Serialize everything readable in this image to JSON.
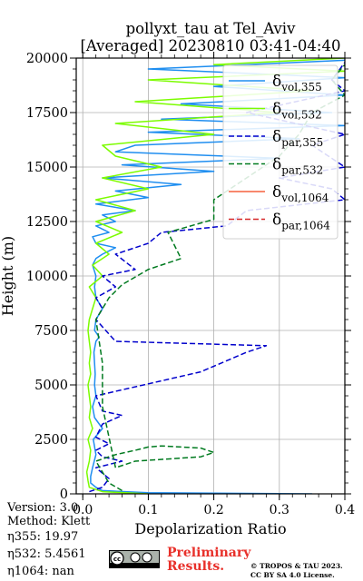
{
  "figure": {
    "title_line1": "pollyxt_tau at Tel_Aviv",
    "title_line2": "[Averaged] 20230810 03:41-04:40"
  },
  "meta": {
    "version": "Version: 3.0",
    "method": "Method: Klett",
    "eta355": "η355:  19.97",
    "eta532": "η532: 5.4561",
    "eta1064": "η1064:    nan"
  },
  "footer": {
    "preliminary_line1": "Preliminary",
    "preliminary_line2": "Results.",
    "copyright_line1": "© TROPOS & TAU 2023.",
    "copyright_line2": "CC BY SA 4.0 License.",
    "cc_badge_text": "cc"
  },
  "chart_data": {
    "type": "line",
    "title": "pollyxt_tau at Tel_Aviv [Averaged] 20230810 03:41-04:40",
    "xlabel": "Depolarization Ratio",
    "ylabel": "Height (m)",
    "xlim": [
      -0.01,
      0.4
    ],
    "ylim": [
      0,
      20000
    ],
    "xticks": [
      "0.0",
      "0.1",
      "0.2",
      "0.3",
      "0.4"
    ],
    "yticks": [
      "0",
      "2500",
      "5000",
      "7500",
      "10000",
      "12500",
      "15000",
      "17500",
      "20000"
    ],
    "grid": true,
    "legend_position": "top-right",
    "series": [
      {
        "name": "δvol,355",
        "color": "#1f8ef0",
        "dash": "solid",
        "x": [
          0.35,
          0.1,
          0.03,
          0.02,
          0.012,
          0.012,
          0.015,
          0.02,
          0.016,
          0.03,
          0.018,
          0.015,
          0.02,
          0.018,
          0.019,
          0.018,
          0.017,
          0.02,
          0.025,
          0.018,
          0.02,
          0.03,
          0.02,
          0.018,
          0.02,
          0.015,
          0.02,
          0.03,
          0.05,
          0.02,
          0.015,
          0.04,
          0.02,
          0.05,
          0.03,
          0.08,
          0.02,
          0.1,
          0.05,
          0.15,
          0.03,
          0.2,
          0.06,
          0.3,
          0.05,
          0.08,
          0.33,
          0.1,
          0.4,
          0.12,
          0.38,
          0.15,
          0.4,
          0.2,
          0.4,
          0.1,
          0.4
        ],
        "y": [
          0,
          50,
          150,
          300,
          500,
          800,
          1200,
          1800,
          2500,
          3000,
          3500,
          4000,
          4500,
          5000,
          5500,
          6000,
          6500,
          7000,
          7200,
          7500,
          8000,
          8500,
          9000,
          9500,
          10000,
          10500,
          10800,
          11000,
          11300,
          11500,
          11800,
          12000,
          12300,
          12500,
          12800,
          13000,
          13300,
          13600,
          13900,
          14200,
          14500,
          14800,
          15100,
          15400,
          15700,
          16000,
          16300,
          16600,
          16900,
          17200,
          17500,
          17900,
          18300,
          18700,
          19100,
          19500,
          19900
        ]
      },
      {
        "name": "δvol,532",
        "color": "#7cfc00",
        "dash": "solid",
        "x": [
          0.1,
          0.03,
          0.01,
          0.008,
          0.006,
          0.01,
          0.012,
          0.008,
          0.015,
          0.01,
          0.012,
          0.01,
          0.008,
          0.012,
          0.01,
          0.012,
          0.01,
          0.008,
          0.01,
          0.015,
          0.02,
          0.01,
          0.03,
          0.015,
          0.04,
          0.02,
          0.06,
          0.02,
          0.08,
          0.02,
          0.1,
          0.03,
          0.12,
          0.05,
          0.03,
          0.2,
          0.05,
          0.3,
          0.08,
          0.35,
          0.1,
          0.4,
          0.2,
          0.4
        ],
        "y": [
          0,
          100,
          300,
          600,
          1000,
          1500,
          2000,
          2500,
          3000,
          3500,
          4000,
          4500,
          5000,
          5500,
          6000,
          6500,
          7000,
          7500,
          8000,
          8500,
          9000,
          9500,
          10000,
          10500,
          11000,
          11500,
          12000,
          12500,
          13000,
          13500,
          14000,
          14500,
          15000,
          15500,
          16000,
          16500,
          17000,
          17500,
          18000,
          18500,
          19000,
          19400,
          19700,
          20000
        ]
      },
      {
        "name": "δpar,355",
        "color": "#0000cc",
        "dash": "6,3",
        "x": [
          0.01,
          0.03,
          0.04,
          0.02,
          0.06,
          0.03,
          0.02,
          0.04,
          0.02,
          0.03,
          0.06,
          0.03,
          0.02,
          0.18,
          0.25,
          0.28,
          0.05,
          0.02,
          0.03,
          0.02,
          0.05,
          0.03,
          0.08,
          0.05,
          0.1,
          0.12,
          0.22,
          0.25,
          0.4,
          0.38,
          0.3,
          0.4,
          0.35,
          0.4,
          0.25,
          0.4,
          0.38,
          0.4
        ],
        "y": [
          100,
          300,
          700,
          1200,
          1500,
          1700,
          2000,
          2300,
          2600,
          3200,
          3600,
          3800,
          4500,
          5600,
          6500,
          6800,
          7000,
          8000,
          8500,
          9000,
          9500,
          10000,
          10300,
          11000,
          11500,
          12000,
          12300,
          13000,
          13500,
          14000,
          14500,
          15000,
          16000,
          16500,
          17500,
          18500,
          19000,
          19800
        ]
      },
      {
        "name": "δpar,532",
        "color": "#007a1f",
        "dash": "6,3",
        "x": [
          0.06,
          0.04,
          0.03,
          0.02,
          0.05,
          0.08,
          0.1,
          0.12,
          0.18,
          0.2,
          0.18,
          0.08,
          0.05,
          0.03,
          0.03,
          0.02,
          0.04,
          0.06,
          0.1,
          0.15,
          0.13,
          0.2,
          0.2,
          0.25,
          0.3,
          0.33,
          0.35,
          0.4,
          0.38,
          0.4
        ],
        "y": [
          150,
          500,
          1000,
          1500,
          1800,
          2000,
          2150,
          2200,
          2100,
          1900,
          1700,
          1500,
          1200,
          4000,
          6000,
          8000,
          9000,
          9600,
          10300,
          10800,
          12000,
          12600,
          13500,
          14500,
          15500,
          16500,
          17500,
          18300,
          19000,
          19700
        ]
      },
      {
        "name": "δvol,1064",
        "color": "#f5613d",
        "dash": "solid",
        "x": [],
        "y": []
      },
      {
        "name": "δpar,1064",
        "color": "#d62728",
        "dash": "6,3",
        "x": [],
        "y": []
      }
    ]
  }
}
